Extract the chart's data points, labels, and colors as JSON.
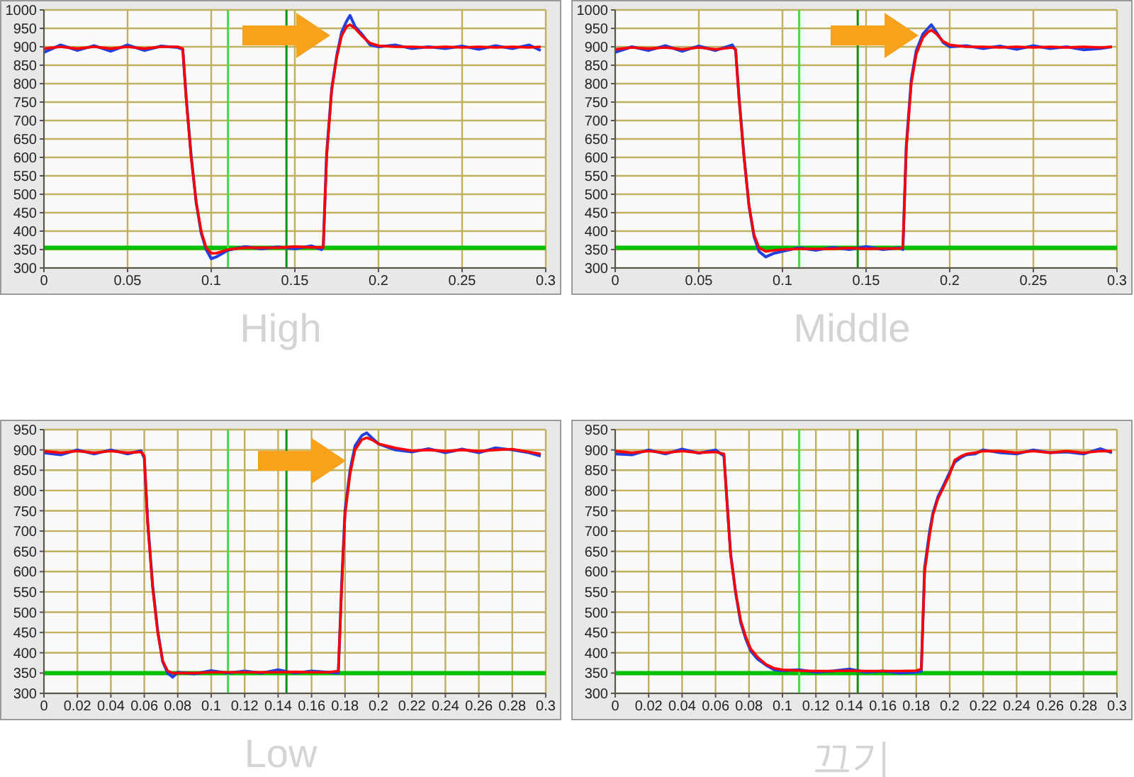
{
  "chart_data": [
    {
      "type": "line",
      "title": "High",
      "xlim": [
        0,
        0.3
      ],
      "xticks": [
        0,
        0.05,
        0.1,
        0.15,
        0.2,
        0.25,
        0.3
      ],
      "ylim": [
        300,
        1000
      ],
      "yticks": [
        300,
        350,
        400,
        450,
        500,
        550,
        600,
        650,
        700,
        750,
        800,
        850,
        900,
        950,
        1000
      ],
      "grid": true,
      "marker": "none",
      "line_style": "solid",
      "ref_lines": [
        {
          "axis": "y",
          "value": 355,
          "color": "#00c000"
        },
        {
          "axis": "x",
          "value": 0.11,
          "color": "#40e040"
        },
        {
          "axis": "x",
          "value": 0.145,
          "color": "#109010"
        }
      ],
      "x": [
        0,
        0.01,
        0.02,
        0.03,
        0.04,
        0.05,
        0.06,
        0.07,
        0.08,
        0.083,
        0.085,
        0.088,
        0.091,
        0.094,
        0.097,
        0.1,
        0.103,
        0.11,
        0.12,
        0.13,
        0.14,
        0.15,
        0.16,
        0.166,
        0.167,
        0.169,
        0.172,
        0.175,
        0.178,
        0.181,
        0.183,
        0.186,
        0.19,
        0.195,
        0.2,
        0.21,
        0.22,
        0.23,
        0.24,
        0.25,
        0.26,
        0.27,
        0.28,
        0.29,
        0.297
      ],
      "series": [
        {
          "color": "#2040e0",
          "values": [
            885,
            905,
            890,
            903,
            888,
            905,
            890,
            902,
            898,
            893,
            765,
            605,
            478,
            395,
            350,
            325,
            330,
            348,
            358,
            352,
            357,
            352,
            360,
            350,
            358,
            610,
            785,
            875,
            940,
            970,
            985,
            955,
            935,
            905,
            900,
            905,
            895,
            900,
            895,
            902,
            893,
            903,
            895,
            905,
            890
          ]
        },
        {
          "color": "#ff0000",
          "values": [
            895,
            900,
            895,
            900,
            895,
            900,
            895,
            900,
            900,
            895,
            760,
            600,
            480,
            400,
            355,
            340,
            340,
            350,
            355,
            355,
            355,
            358,
            356,
            356,
            356,
            600,
            780,
            870,
            930,
            955,
            960,
            950,
            930,
            910,
            903,
            900,
            900,
            898,
            900,
            898,
            900,
            898,
            900,
            898,
            900
          ]
        }
      ]
    },
    {
      "type": "line",
      "title": "Middle",
      "xlim": [
        0,
        0.3
      ],
      "xticks": [
        0,
        0.05,
        0.1,
        0.15,
        0.2,
        0.25,
        0.3
      ],
      "ylim": [
        300,
        1000
      ],
      "yticks": [
        300,
        350,
        400,
        450,
        500,
        550,
        600,
        650,
        700,
        750,
        800,
        850,
        900,
        950,
        1000
      ],
      "grid": true,
      "marker": "none",
      "line_style": "solid",
      "ref_lines": [
        {
          "axis": "y",
          "value": 355,
          "color": "#00c000"
        },
        {
          "axis": "x",
          "value": 0.11,
          "color": "#40e040"
        },
        {
          "axis": "x",
          "value": 0.145,
          "color": "#109010"
        }
      ],
      "x": [
        0,
        0.01,
        0.02,
        0.03,
        0.04,
        0.05,
        0.06,
        0.07,
        0.072,
        0.074,
        0.077,
        0.08,
        0.083,
        0.086,
        0.09,
        0.095,
        0.1,
        0.11,
        0.12,
        0.13,
        0.14,
        0.15,
        0.16,
        0.17,
        0.172,
        0.174,
        0.177,
        0.18,
        0.184,
        0.187,
        0.189,
        0.192,
        0.196,
        0.2,
        0.21,
        0.22,
        0.23,
        0.24,
        0.25,
        0.26,
        0.27,
        0.28,
        0.29,
        0.297
      ],
      "series": [
        {
          "color": "#2040e0",
          "values": [
            885,
            900,
            890,
            903,
            888,
            902,
            890,
            905,
            890,
            765,
            605,
            468,
            385,
            345,
            330,
            340,
            345,
            355,
            348,
            356,
            350,
            358,
            350,
            355,
            350,
            630,
            810,
            890,
            935,
            950,
            960,
            940,
            912,
            900,
            903,
            895,
            902,
            893,
            903,
            895,
            900,
            892,
            895,
            900
          ]
        },
        {
          "color": "#ff0000",
          "values": [
            893,
            898,
            895,
            898,
            893,
            898,
            893,
            898,
            893,
            760,
            600,
            470,
            390,
            355,
            345,
            348,
            350,
            352,
            352,
            352,
            354,
            352,
            353,
            353,
            355,
            620,
            800,
            880,
            925,
            940,
            945,
            935,
            915,
            905,
            900,
            900,
            898,
            900,
            898,
            900,
            898,
            900,
            898,
            900
          ]
        }
      ]
    },
    {
      "type": "line",
      "title": "Low",
      "xlim": [
        0,
        0.3
      ],
      "xticks": [
        0,
        0.02,
        0.04,
        0.06,
        0.08,
        0.1,
        0.12,
        0.14,
        0.16,
        0.18,
        0.2,
        0.22,
        0.24,
        0.26,
        0.28,
        0.3
      ],
      "ylim": [
        300,
        950
      ],
      "yticks": [
        300,
        350,
        400,
        450,
        500,
        550,
        600,
        650,
        700,
        750,
        800,
        850,
        900,
        950
      ],
      "grid": true,
      "marker": "none",
      "line_style": "solid",
      "ref_lines": [
        {
          "axis": "y",
          "value": 350,
          "color": "#00c000"
        },
        {
          "axis": "x",
          "value": 0.11,
          "color": "#40e040"
        },
        {
          "axis": "x",
          "value": 0.145,
          "color": "#109010"
        }
      ],
      "x": [
        0,
        0.01,
        0.02,
        0.03,
        0.04,
        0.05,
        0.058,
        0.06,
        0.062,
        0.065,
        0.068,
        0.071,
        0.074,
        0.077,
        0.08,
        0.09,
        0.1,
        0.11,
        0.12,
        0.13,
        0.14,
        0.15,
        0.16,
        0.17,
        0.176,
        0.178,
        0.18,
        0.183,
        0.186,
        0.19,
        0.193,
        0.196,
        0.2,
        0.21,
        0.22,
        0.23,
        0.24,
        0.25,
        0.26,
        0.27,
        0.28,
        0.29,
        0.297
      ],
      "series": [
        {
          "color": "#2040e0",
          "values": [
            893,
            888,
            900,
            890,
            900,
            890,
            898,
            880,
            725,
            565,
            455,
            378,
            350,
            340,
            352,
            348,
            356,
            350,
            355,
            350,
            358,
            350,
            355,
            352,
            350,
            570,
            750,
            850,
            910,
            935,
            942,
            930,
            915,
            900,
            895,
            903,
            893,
            902,
            893,
            905,
            900,
            893,
            885
          ]
        },
        {
          "color": "#ff0000",
          "values": [
            897,
            893,
            897,
            893,
            897,
            893,
            895,
            885,
            720,
            560,
            450,
            380,
            355,
            350,
            350,
            350,
            352,
            352,
            352,
            352,
            352,
            353,
            352,
            352,
            355,
            560,
            740,
            840,
            900,
            925,
            930,
            925,
            915,
            905,
            898,
            900,
            897,
            900,
            897,
            900,
            902,
            895,
            890
          ]
        }
      ]
    },
    {
      "type": "line",
      "title": "끄기",
      "xlim": [
        0,
        0.3
      ],
      "xticks": [
        0,
        0.02,
        0.04,
        0.06,
        0.08,
        0.1,
        0.12,
        0.14,
        0.16,
        0.18,
        0.2,
        0.22,
        0.24,
        0.26,
        0.28,
        0.3
      ],
      "ylim": [
        300,
        950
      ],
      "yticks": [
        300,
        350,
        400,
        450,
        500,
        550,
        600,
        650,
        700,
        750,
        800,
        850,
        900,
        950
      ],
      "grid": true,
      "marker": "none",
      "line_style": "solid",
      "ref_lines": [
        {
          "axis": "y",
          "value": 350,
          "color": "#00c000"
        },
        {
          "axis": "x",
          "value": 0.11,
          "color": "#40e040"
        },
        {
          "axis": "x",
          "value": 0.145,
          "color": "#109010"
        }
      ],
      "x": [
        0,
        0.01,
        0.02,
        0.03,
        0.04,
        0.05,
        0.06,
        0.065,
        0.067,
        0.069,
        0.072,
        0.075,
        0.078,
        0.081,
        0.085,
        0.09,
        0.095,
        0.1,
        0.11,
        0.12,
        0.13,
        0.14,
        0.15,
        0.16,
        0.17,
        0.18,
        0.183,
        0.185,
        0.188,
        0.19,
        0.193,
        0.196,
        0.2,
        0.203,
        0.207,
        0.21,
        0.215,
        0.22,
        0.23,
        0.24,
        0.25,
        0.26,
        0.27,
        0.28,
        0.29,
        0.297
      ],
      "series": [
        {
          "color": "#2040e0",
          "values": [
            890,
            888,
            900,
            890,
            902,
            892,
            900,
            885,
            765,
            645,
            548,
            475,
            435,
            405,
            385,
            370,
            358,
            356,
            358,
            352,
            355,
            360,
            352,
            355,
            350,
            352,
            355,
            610,
            700,
            745,
            785,
            810,
            845,
            870,
            882,
            888,
            890,
            900,
            893,
            890,
            900,
            893,
            895,
            890,
            903,
            893
          ]
        },
        {
          "color": "#ff0000",
          "values": [
            897,
            893,
            897,
            893,
            897,
            893,
            895,
            890,
            760,
            640,
            550,
            480,
            440,
            410,
            390,
            372,
            362,
            358,
            356,
            355,
            355,
            356,
            355,
            355,
            355,
            356,
            360,
            600,
            690,
            740,
            780,
            805,
            840,
            875,
            885,
            890,
            893,
            897,
            897,
            893,
            897,
            893,
            897,
            893,
            897,
            897
          ]
        }
      ]
    }
  ]
}
